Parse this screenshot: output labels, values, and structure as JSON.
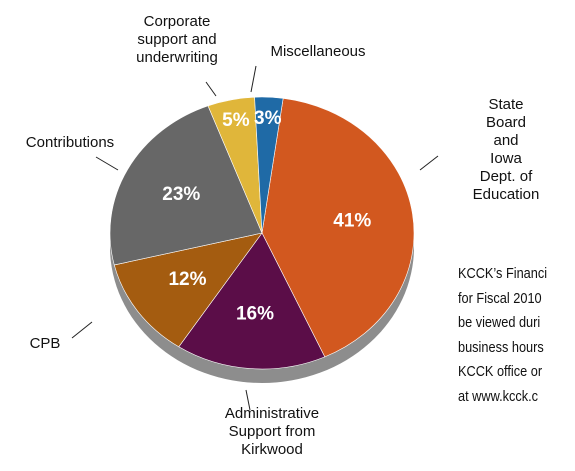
{
  "chart_data": {
    "type": "pie",
    "categories": [
      "State Board and\nIowa Dept. of\nEducation",
      "Administrative\nSupport from\nKirkwood",
      "CPB",
      "Contributions",
      "Corporate\nsupport and\nunderwriting",
      "Miscellaneous"
    ],
    "values": [
      41,
      16,
      12,
      23,
      5,
      3
    ],
    "value_labels": [
      "41%",
      "16%",
      "12%",
      "23%",
      "5%",
      "3%"
    ],
    "colors": [
      "#d2581f",
      "#5b0d48",
      "#a45c10",
      "#676767",
      "#e0b63a",
      "#1f6aa6"
    ]
  },
  "note_lines": [
    "KCCK’s Financi",
    "for Fiscal 2010",
    "be viewed duri",
    "business hours",
    "KCCK office or",
    "at www.kcck.c"
  ]
}
